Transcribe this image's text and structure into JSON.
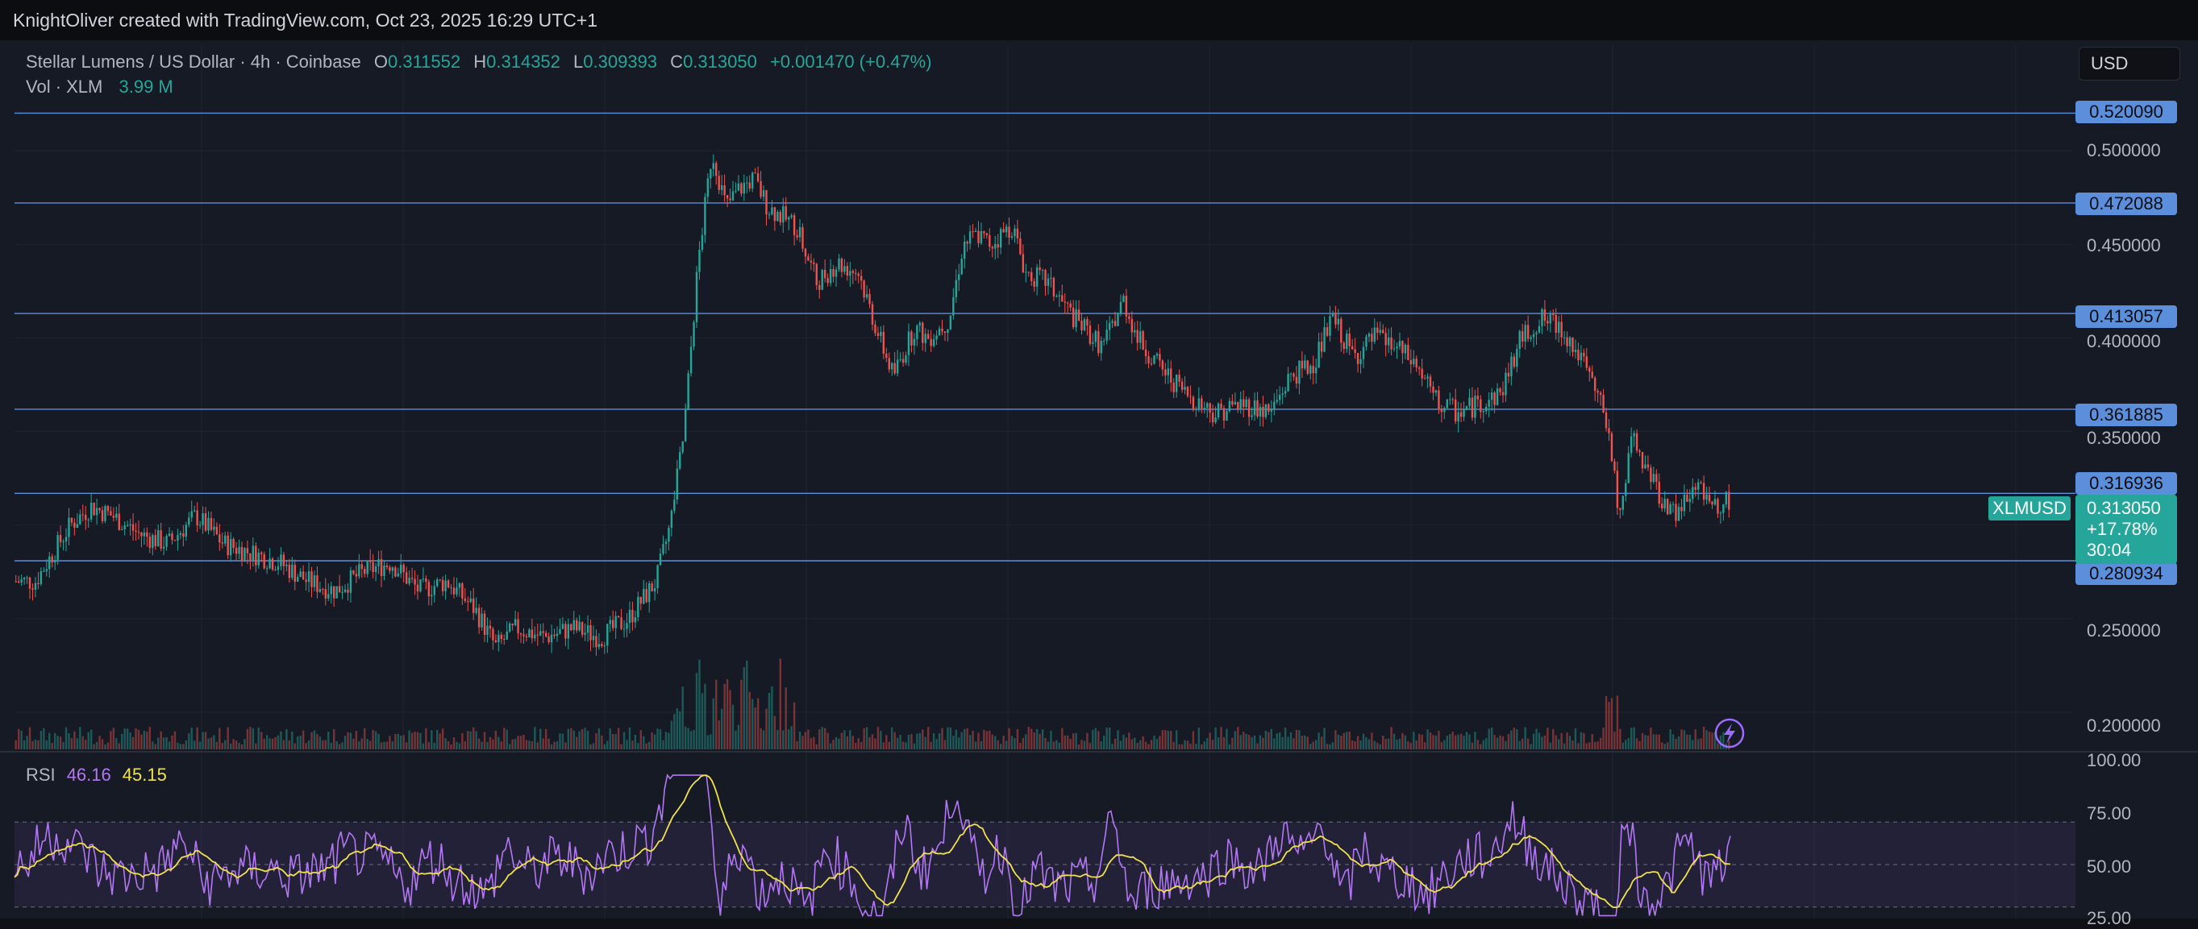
{
  "credit": "KnightOliver created with TradingView.com, Oct 23, 2025 16:29 UTC+1",
  "currency": "USD",
  "legend": {
    "title": "Stellar Lumens / US Dollar · 4h · Coinbase",
    "o_label": "O",
    "o": "0.311552",
    "h_label": "H",
    "h": "0.314352",
    "l_label": "L",
    "l": "0.309393",
    "c_label": "C",
    "c": "0.313050",
    "change": "+0.001470 (+0.47%)",
    "vol_label": "Vol · XLM",
    "vol": "3.99 M"
  },
  "rsi_legend": {
    "label": "RSI",
    "rsi": "46.16",
    "ma": "45.15"
  },
  "current": {
    "symbol": "XLMUSD",
    "price": "0.313050",
    "change": "+17.78%",
    "countdown": "30:04"
  },
  "colors": {
    "up": "#26a69a",
    "down": "#ef5350",
    "level": "#5b8fdc",
    "rsi": "#b277f2",
    "rsi_ma": "#f0e24a"
  },
  "icons": [
    "lightning-bolt-icon"
  ],
  "chart_data": [
    {
      "type": "candlestick",
      "timeframe": "4h",
      "y_axis_ticks": [
        "0.500000",
        "0.450000",
        "0.400000",
        "0.350000",
        "0.250000",
        "0.200000"
      ],
      "ylim": [
        0.19,
        0.53
      ],
      "horizontal_levels": [
        "0.520090",
        "0.472088",
        "0.413057",
        "0.361885",
        "0.316936",
        "0.280934"
      ],
      "close_path": [
        [
          0,
          0.27
        ],
        [
          15,
          0.27
        ],
        [
          40,
          0.3
        ],
        [
          55,
          0.31
        ],
        [
          70,
          0.305
        ],
        [
          90,
          0.295
        ],
        [
          110,
          0.29
        ],
        [
          130,
          0.305
        ],
        [
          150,
          0.29
        ],
        [
          170,
          0.285
        ],
        [
          190,
          0.28
        ],
        [
          210,
          0.27
        ],
        [
          230,
          0.265
        ],
        [
          250,
          0.275
        ],
        [
          270,
          0.28
        ],
        [
          290,
          0.265
        ],
        [
          310,
          0.27
        ],
        [
          330,
          0.255
        ],
        [
          345,
          0.235
        ],
        [
          360,
          0.245
        ],
        [
          380,
          0.24
        ],
        [
          400,
          0.245
        ],
        [
          420,
          0.24
        ],
        [
          440,
          0.25
        ],
        [
          460,
          0.27
        ],
        [
          470,
          0.3
        ],
        [
          480,
          0.35
        ],
        [
          490,
          0.44
        ],
        [
          500,
          0.5
        ],
        [
          510,
          0.47
        ],
        [
          520,
          0.48
        ],
        [
          530,
          0.485
        ],
        [
          540,
          0.47
        ],
        [
          560,
          0.46
        ],
        [
          575,
          0.43
        ],
        [
          590,
          0.44
        ],
        [
          605,
          0.435
        ],
        [
          620,
          0.4
        ],
        [
          630,
          0.38
        ],
        [
          645,
          0.405
        ],
        [
          655,
          0.4
        ],
        [
          670,
          0.41
        ],
        [
          680,
          0.45
        ],
        [
          690,
          0.455
        ],
        [
          700,
          0.45
        ],
        [
          715,
          0.46
        ],
        [
          725,
          0.435
        ],
        [
          740,
          0.43
        ],
        [
          760,
          0.41
        ],
        [
          780,
          0.395
        ],
        [
          795,
          0.42
        ],
        [
          805,
          0.4
        ],
        [
          820,
          0.385
        ],
        [
          840,
          0.37
        ],
        [
          860,
          0.36
        ],
        [
          880,
          0.365
        ],
        [
          900,
          0.36
        ],
        [
          915,
          0.38
        ],
        [
          930,
          0.385
        ],
        [
          945,
          0.41
        ],
        [
          960,
          0.39
        ],
        [
          975,
          0.4
        ],
        [
          990,
          0.395
        ],
        [
          1005,
          0.385
        ],
        [
          1020,
          0.365
        ],
        [
          1035,
          0.36
        ],
        [
          1050,
          0.365
        ],
        [
          1065,
          0.37
        ],
        [
          1080,
          0.4
        ],
        [
          1095,
          0.41
        ],
        [
          1110,
          0.405
        ],
        [
          1125,
          0.385
        ],
        [
          1140,
          0.36
        ],
        [
          1150,
          0.31
        ],
        [
          1160,
          0.345
        ],
        [
          1170,
          0.33
        ],
        [
          1180,
          0.315
        ],
        [
          1190,
          0.305
        ],
        [
          1200,
          0.315
        ],
        [
          1210,
          0.32
        ],
        [
          1220,
          0.31
        ],
        [
          1230,
          0.313
        ]
      ]
    },
    {
      "type": "line",
      "title": "RSI",
      "y_axis_ticks": [
        "100.00",
        "75.00",
        "50.00",
        "25.00"
      ],
      "ylim": [
        25,
        100
      ],
      "band": [
        30,
        70
      ]
    }
  ]
}
